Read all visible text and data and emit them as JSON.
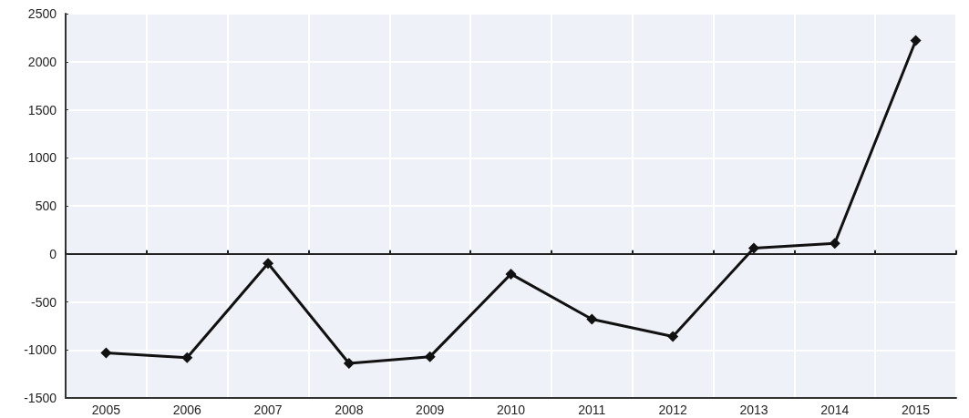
{
  "chart_data": {
    "type": "line",
    "categories": [
      "2005",
      "2006",
      "2007",
      "2008",
      "2009",
      "2010",
      "2011",
      "2012",
      "2013",
      "2014",
      "2015"
    ],
    "series": [
      {
        "color": "#111111",
        "values": [
          -1030,
          -1080,
          -100,
          -1140,
          -1070,
          -210,
          -680,
          -860,
          60,
          110,
          2220
        ]
      }
    ],
    "ylim": [
      -1500,
      2500
    ],
    "yticks": [
      -1500,
      -1000,
      -500,
      0,
      500,
      1000,
      1500,
      2000,
      2500
    ],
    "grid": true,
    "marker": "diamond",
    "line_style": "solid"
  }
}
